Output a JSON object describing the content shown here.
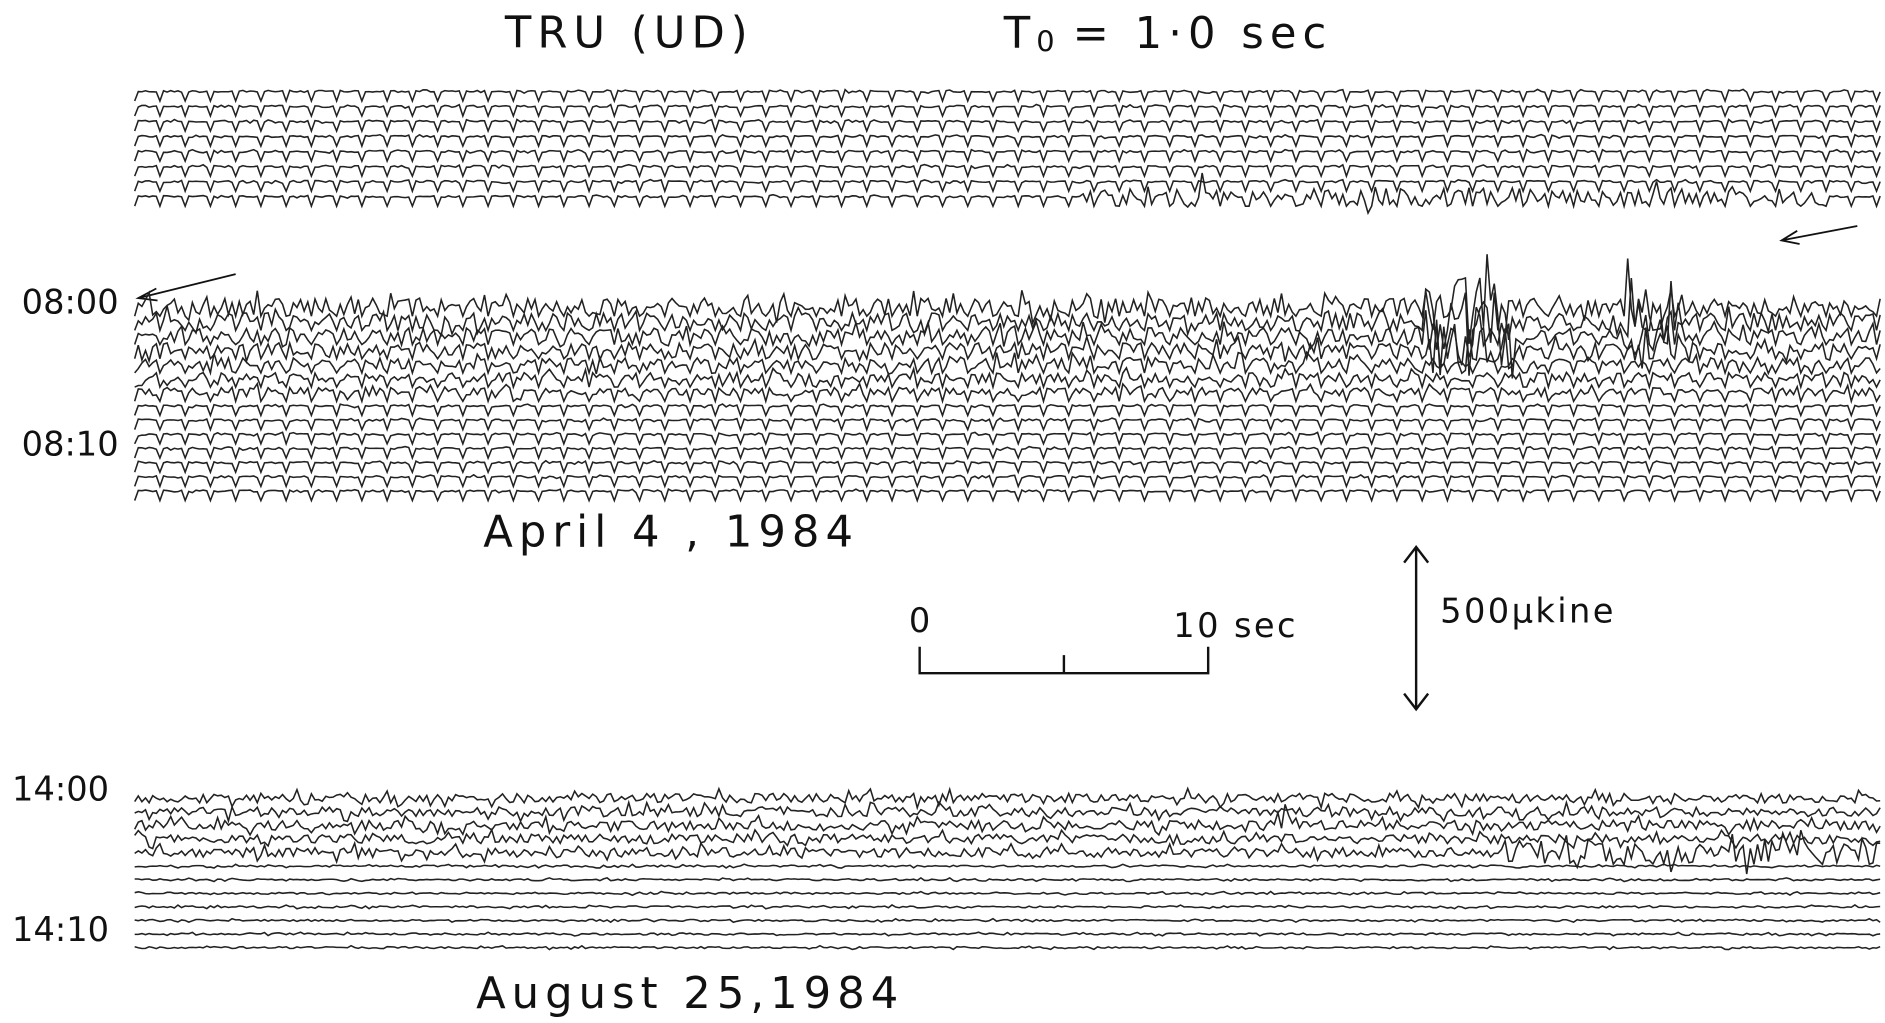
{
  "header": {
    "station": "TRU (UD)",
    "period": {
      "symbol": "T",
      "subscript": "0",
      "text": "= 1·0 sec"
    }
  },
  "panels": [
    {
      "date": "April 4 , 1984",
      "time_labels": [
        "08:00",
        "08:10"
      ]
    },
    {
      "date": "August 25,1984",
      "time_labels": [
        "14:00",
        "14:10"
      ]
    }
  ],
  "scale": {
    "time_start": "0",
    "time_end": "10 sec",
    "amplitude": "500μkine"
  }
}
